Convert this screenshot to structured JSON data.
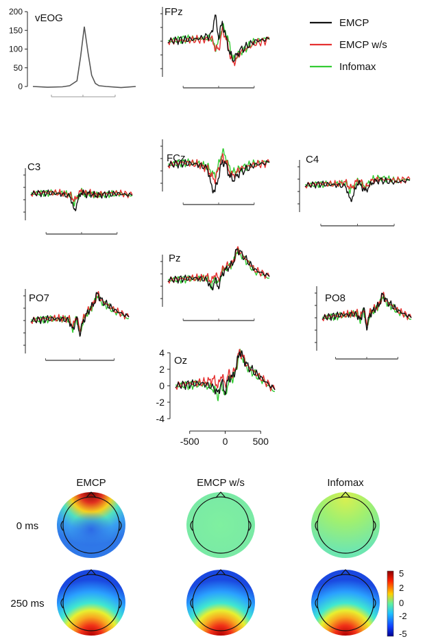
{
  "chart_data": {
    "type": "line",
    "legend": {
      "placement": "top-right",
      "entries": [
        {
          "name": "EMCP",
          "color": "#111111"
        },
        {
          "name": "EMCP w/s",
          "color": "#e53030"
        },
        {
          "name": "Infomax",
          "color": "#33cc33"
        }
      ]
    },
    "x_axis": {
      "ticks": [
        -500,
        0,
        500
      ],
      "range": [
        -700,
        700
      ]
    },
    "veog": {
      "label": "vEOG",
      "yticks": [
        0,
        50,
        100,
        150,
        200
      ],
      "ylim": [
        0,
        200
      ],
      "x": [
        -700,
        -500,
        -300,
        -200,
        -100,
        -50,
        0,
        50,
        100,
        150,
        200,
        300,
        500,
        700
      ],
      "y": [
        0,
        -2,
        -1,
        2,
        15,
        80,
        160,
        90,
        30,
        8,
        2,
        0,
        -3,
        0
      ]
    },
    "panels": [
      {
        "label": "FPz",
        "x": [
          -700,
          -500,
          -300,
          -100,
          -50,
          0,
          50,
          100,
          150,
          200,
          300,
          500,
          700
        ],
        "series": [
          {
            "name": "EMCP",
            "values": [
              0,
              0.2,
              0.3,
              0.8,
              3.5,
              0.5,
              2.5,
              0.5,
              -1.5,
              -2.5,
              -1.2,
              0,
              0.3
            ]
          },
          {
            "name": "EMCP w/s",
            "values": [
              0,
              0.1,
              0.2,
              0.3,
              -0.8,
              -1.2,
              1.5,
              0.5,
              -1.5,
              -3,
              -1.5,
              -0.3,
              0.2
            ]
          },
          {
            "name": "Infomax",
            "values": [
              0,
              0.3,
              0.3,
              0.5,
              -1,
              0,
              2,
              1.2,
              -0.5,
              -2.5,
              -1.5,
              0,
              0.5
            ]
          }
        ]
      },
      {
        "label": "FCz",
        "x": [
          -700,
          -500,
          -300,
          -150,
          -100,
          -50,
          0,
          50,
          100,
          150,
          200,
          300,
          500,
          700
        ],
        "series": [
          {
            "name": "EMCP",
            "values": [
              0,
              0.2,
              0.1,
              -0.5,
              -3,
              -3.5,
              -1.5,
              0.5,
              0,
              -1.5,
              -2,
              -1,
              0,
              0.3
            ]
          },
          {
            "name": "EMCP w/s",
            "values": [
              0,
              0.3,
              0.1,
              -0.5,
              -1.5,
              -2,
              -0.5,
              1,
              0.5,
              -1,
              -1.5,
              -0.5,
              0,
              0.3
            ]
          },
          {
            "name": "Infomax",
            "values": [
              0,
              0.3,
              0.2,
              -0.3,
              -1,
              -1.5,
              0,
              1.8,
              1,
              -0.5,
              -1,
              -0.5,
              0.2,
              0.5
            ]
          }
        ]
      },
      {
        "label": "C3",
        "x": [
          -700,
          -500,
          -300,
          -150,
          -100,
          -50,
          0,
          50,
          100,
          200,
          300,
          500,
          700
        ],
        "series": [
          {
            "name": "EMCP",
            "values": [
              0,
              0.1,
              0,
              -0.5,
              -3,
              -1,
              0.3,
              -0.2,
              0,
              -0.3,
              -0.2,
              0,
              -0.3
            ]
          },
          {
            "name": "EMCP w/s",
            "values": [
              0,
              0.2,
              0.1,
              -0.2,
              -1.2,
              -0.3,
              0.5,
              0,
              0.2,
              -0.2,
              0,
              0.1,
              -0.2
            ]
          },
          {
            "name": "Infomax",
            "values": [
              0,
              0.1,
              0.1,
              -0.2,
              -1.5,
              -0.5,
              0.3,
              -0.2,
              0.1,
              -0.3,
              -0.2,
              0,
              -0.3
            ]
          }
        ]
      },
      {
        "label": "C4",
        "x": [
          -700,
          -500,
          -300,
          -150,
          -100,
          -50,
          0,
          50,
          100,
          200,
          300,
          500,
          700
        ],
        "series": [
          {
            "name": "EMCP",
            "values": [
              0,
              0.2,
              0.1,
              -0.2,
              -2.5,
              -1.5,
              0.5,
              0,
              -1,
              0.5,
              0.8,
              0.5,
              0.8
            ]
          },
          {
            "name": "EMCP w/s",
            "values": [
              0,
              0.3,
              0.2,
              0.5,
              -0.5,
              0,
              0.8,
              0.5,
              -0.5,
              0.8,
              1,
              0.8,
              1
            ]
          },
          {
            "name": "Infomax",
            "values": [
              0,
              0.2,
              0.2,
              0.3,
              -0.8,
              -0.3,
              0.6,
              0.3,
              -0.3,
              1,
              1.2,
              0.8,
              1
            ]
          }
        ]
      },
      {
        "label": "Pz",
        "x": [
          -700,
          -500,
          -300,
          -150,
          -100,
          -50,
          0,
          50,
          100,
          200,
          250,
          300,
          500,
          700
        ],
        "series": [
          {
            "name": "EMCP",
            "values": [
              0,
              0.2,
              0.3,
              0,
              -1.5,
              0,
              -1,
              1,
              1.5,
              2.5,
              4.5,
              4,
              1.5,
              0.5
            ]
          },
          {
            "name": "EMCP w/s",
            "values": [
              0,
              0.2,
              0.3,
              0.5,
              -0.3,
              1,
              0,
              1.5,
              2,
              2.5,
              4.5,
              4,
              1.5,
              0.5
            ]
          },
          {
            "name": "Infomax",
            "values": [
              0,
              0.1,
              0.2,
              0.2,
              -0.8,
              0.2,
              -0.5,
              1.2,
              1.8,
              2.3,
              4.3,
              3.8,
              1.2,
              0.3
            ]
          }
        ]
      },
      {
        "label": "PO7",
        "x": [
          -700,
          -500,
          -300,
          -150,
          -100,
          -50,
          0,
          50,
          100,
          200,
          250,
          300,
          500,
          700
        ],
        "series": [
          {
            "name": "EMCP",
            "values": [
              0,
              0.2,
              0.3,
              0,
              -1.5,
              0.5,
              -2,
              0,
              1,
              2.5,
              4,
              3,
              1.5,
              0.5
            ]
          },
          {
            "name": "EMCP w/s",
            "values": [
              0,
              0.3,
              0.3,
              0.3,
              -1,
              0.8,
              -1.5,
              0.3,
              1.2,
              2.5,
              4,
              3,
              1.5,
              0.5
            ]
          },
          {
            "name": "Infomax",
            "values": [
              0,
              0.2,
              0.2,
              0.1,
              -1.2,
              0.5,
              -2,
              0,
              1,
              2.3,
              3.8,
              2.8,
              1.3,
              0.3
            ]
          }
        ]
      },
      {
        "label": "PO8",
        "x": [
          -700,
          -500,
          -300,
          -150,
          -100,
          -50,
          0,
          50,
          100,
          200,
          250,
          300,
          500,
          700
        ],
        "series": [
          {
            "name": "EMCP",
            "values": [
              0,
              0.3,
              0.5,
              0.5,
              -0.5,
              1.5,
              -1.5,
              0.5,
              1,
              2,
              3.5,
              2.5,
              1,
              0
            ]
          },
          {
            "name": "EMCP w/s",
            "values": [
              0,
              0.3,
              0.5,
              0.8,
              0,
              1.5,
              -1,
              0.8,
              1.2,
              2,
              3.5,
              2.5,
              1,
              0
            ]
          },
          {
            "name": "Infomax",
            "values": [
              0,
              0.2,
              0.4,
              0.6,
              -0.3,
              1.2,
              -1.5,
              0.5,
              1,
              1.8,
              3.3,
              2.3,
              0.8,
              -0.2
            ]
          }
        ]
      },
      {
        "label": "Oz",
        "x": [
          -700,
          -500,
          -300,
          -150,
          -100,
          -50,
          0,
          50,
          100,
          150,
          200,
          250,
          300,
          500,
          700
        ],
        "series": [
          {
            "name": "EMCP",
            "values": [
              0,
              0.2,
              0.3,
              -0.3,
              -1,
              0.5,
              -0.8,
              1,
              1,
              2,
              4.2,
              3.5,
              2.5,
              1,
              -0.5
            ]
          },
          {
            "name": "EMCP w/s",
            "values": [
              0,
              0.3,
              0.4,
              0.8,
              -0.2,
              1.5,
              0,
              1.5,
              1.2,
              2.2,
              4.2,
              3.5,
              2.5,
              1,
              -0.5
            ]
          },
          {
            "name": "Infomax",
            "values": [
              0,
              0.1,
              0.2,
              -0.5,
              -1.3,
              0.3,
              -1.5,
              0.8,
              0.8,
              1.8,
              4,
              3.3,
              2.3,
              0.8,
              -0.7
            ]
          }
        ]
      }
    ],
    "oz_yaxis": {
      "ticks": [
        -4,
        -2,
        0,
        2,
        4
      ],
      "ylim": [
        -4,
        4
      ]
    },
    "topomaps": {
      "columns": [
        "EMCP",
        "EMCP w/s",
        "Infomax"
      ],
      "rows": [
        "0 ms",
        "250 ms"
      ],
      "maps": [
        {
          "row": "0 ms",
          "column": "EMCP",
          "pattern": "frontal-positive"
        },
        {
          "row": "0 ms",
          "column": "EMCP w/s",
          "pattern": "flat"
        },
        {
          "row": "0 ms",
          "column": "Infomax",
          "pattern": "flat-frontal-slight"
        },
        {
          "row": "250 ms",
          "column": "EMCP",
          "pattern": "posterior-positive"
        },
        {
          "row": "250 ms",
          "column": "EMCP w/s",
          "pattern": "posterior-positive"
        },
        {
          "row": "250 ms",
          "column": "Infomax",
          "pattern": "posterior-positive"
        }
      ],
      "colorbar": {
        "ticks": [
          "5",
          "2",
          "0",
          "-2",
          "-5"
        ],
        "range": [
          -5,
          5
        ]
      }
    }
  }
}
